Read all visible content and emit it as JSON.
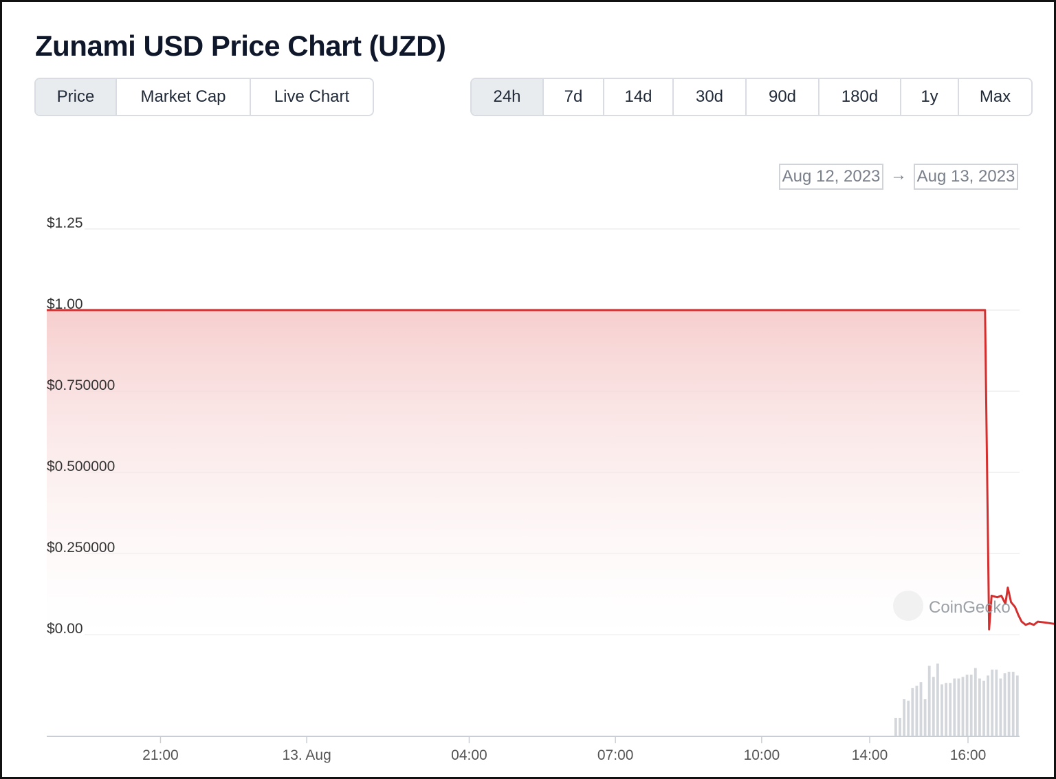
{
  "title": "Zunami USD Price Chart (UZD)",
  "view_tabs": [
    {
      "label": "Price",
      "active": true
    },
    {
      "label": "Market Cap",
      "active": false
    },
    {
      "label": "Live Chart",
      "active": false
    }
  ],
  "range_tabs": [
    {
      "label": "24h",
      "active": true
    },
    {
      "label": "7d",
      "active": false
    },
    {
      "label": "14d",
      "active": false
    },
    {
      "label": "30d",
      "active": false
    },
    {
      "label": "90d",
      "active": false
    },
    {
      "label": "180d",
      "active": false
    },
    {
      "label": "1y",
      "active": false
    },
    {
      "label": "Max",
      "active": false
    }
  ],
  "date_range": {
    "from": "Aug 12, 2023",
    "arrow": "→",
    "to": "Aug 13, 2023"
  },
  "watermark": "CoinGecko",
  "colors": {
    "line": "#d32f2f",
    "fill_top": "#f8d3d3",
    "volume": "#d3d6da",
    "grid": "#eceef0"
  },
  "chart_data": {
    "type": "area",
    "title": "Zunami USD Price Chart (UZD)",
    "ylim": [
      0,
      1.25
    ],
    "y_ticks": [
      {
        "value": 1.25,
        "label": "$1.25"
      },
      {
        "value": 1.0,
        "label": "$1.00"
      },
      {
        "value": 0.75,
        "label": "$0.750000"
      },
      {
        "value": 0.5,
        "label": "$0.500000"
      },
      {
        "value": 0.25,
        "label": "$0.250000"
      },
      {
        "value": 0.0,
        "label": "$0.00"
      }
    ],
    "x_ticks": [
      "21:00",
      "13. Aug",
      "04:00",
      "07:00",
      "10:00",
      "14:00",
      "16:00"
    ],
    "grid": true,
    "legend": "none",
    "series": [
      {
        "x": [
          "2023-08-12 18:40",
          "2023-08-12 22:00",
          "2023-08-13 01:00",
          "2023-08-13 04:00",
          "2023-08-13 07:00",
          "2023-08-13 10:00",
          "2023-08-13 12:00",
          "2023-08-13 13:55",
          "2023-08-13 14:00",
          "2023-08-13 14:03",
          "2023-08-13 14:10",
          "2023-08-13 14:15",
          "2023-08-13 14:20",
          "2023-08-13 14:23",
          "2023-08-13 14:27",
          "2023-08-13 14:32",
          "2023-08-13 14:36",
          "2023-08-13 14:40",
          "2023-08-13 14:45",
          "2023-08-13 14:50",
          "2023-08-13 14:55",
          "2023-08-13 15:00",
          "2023-08-13 15:07",
          "2023-08-13 15:15",
          "2023-08-13 15:30",
          "2023-08-13 15:45",
          "2023-08-13 16:00",
          "2023-08-13 16:10",
          "2023-08-13 16:20",
          "2023-08-13 16:30"
        ],
        "values": [
          1.0,
          1.0,
          1.0,
          1.0,
          1.0,
          1.0,
          1.0,
          1.0,
          0.016,
          0.12,
          0.115,
          0.12,
          0.095,
          0.145,
          0.1,
          0.085,
          0.06,
          0.04,
          0.03,
          0.035,
          0.03,
          0.04,
          0.038,
          0.035,
          0.03,
          0.028,
          0.015,
          0.014,
          0.014,
          0.012
        ]
      }
    ],
    "volume": {
      "x": [
        "14:00",
        "14:05",
        "14:10",
        "14:15",
        "14:20",
        "14:25",
        "14:30",
        "14:35",
        "14:40",
        "14:45",
        "14:50",
        "14:55",
        "15:00",
        "15:05",
        "15:10",
        "15:15",
        "15:20",
        "15:25",
        "15:30",
        "15:35",
        "15:40",
        "15:45",
        "15:50",
        "15:55",
        "16:00",
        "16:05",
        "16:10",
        "16:15",
        "16:20",
        "16:25"
      ],
      "relative": [
        0.25,
        0.25,
        0.5,
        0.48,
        0.65,
        0.68,
        0.73,
        0.5,
        0.95,
        0.8,
        0.98,
        0.7,
        0.72,
        0.72,
        0.78,
        0.78,
        0.8,
        0.83,
        0.83,
        0.92,
        0.78,
        0.75,
        0.82,
        0.9,
        0.9,
        0.78,
        0.85,
        0.87,
        0.87,
        0.82
      ]
    }
  }
}
